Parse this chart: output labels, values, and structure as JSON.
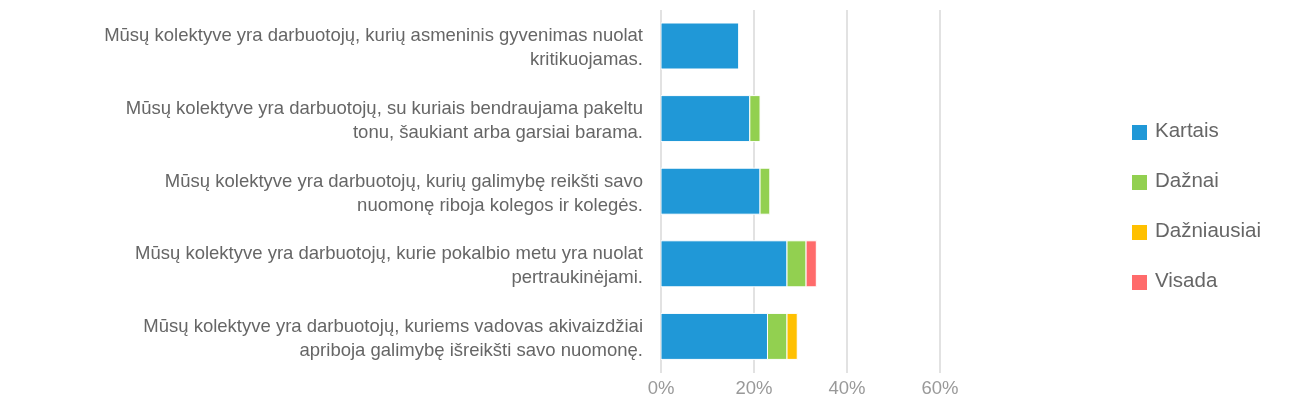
{
  "chart_data": {
    "type": "bar",
    "orientation": "horizontal",
    "stacked": true,
    "categories": [
      "Mūsų kolektyve yra darbuotojų, kurių asmeninis gyvenimas nuolat kritikuojamas.",
      "Mūsų kolektyve yra darbuotojų, su kuriais bendraujama pakeltu tonu, šaukiant arba garsiai barama.",
      "Mūsų kolektyve yra darbuotojų, kurių galimybę reikšti savo nuomonę riboja kolegos ir kolegės.",
      "Mūsų kolektyve yra darbuotojų, kurie pokalbio metu yra nuolat pertraukinėjami.",
      "Mūsų kolektyve yra darbuotojų, kuriems vadovas akivaizdžiai apriboja galimybę išreikšti savo nuomonę."
    ],
    "series": [
      {
        "name": "Kartais",
        "color": "#2098d7",
        "values": [
          16.7,
          19.1,
          21.3,
          27.1,
          22.9
        ]
      },
      {
        "name": "Dažnai",
        "color": "#92d050",
        "values": [
          null,
          2.2,
          2.1,
          4.1,
          4.2
        ]
      },
      {
        "name": "Dažniausiai",
        "color": "#ffc000",
        "values": [
          null,
          null,
          null,
          null,
          2.2
        ]
      },
      {
        "name": "Visada",
        "color": "#ff6b6b",
        "values": [
          null,
          null,
          null,
          2.2,
          null
        ]
      }
    ],
    "xlim": [
      0,
      60
    ],
    "xticks": [
      {
        "value": 0,
        "label": "0%"
      },
      {
        "value": 20,
        "label": "20%"
      },
      {
        "value": 40,
        "label": "40%"
      },
      {
        "value": 60,
        "label": "60%"
      }
    ],
    "grid": "x",
    "legend": "right"
  }
}
